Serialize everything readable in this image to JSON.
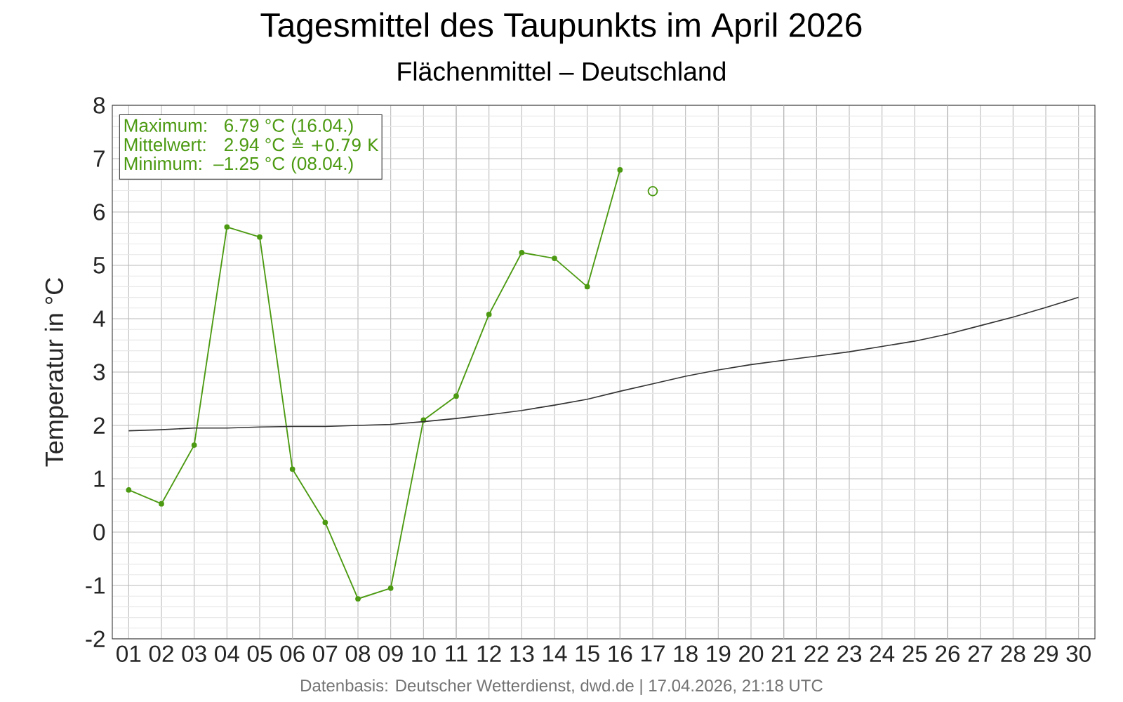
{
  "chart_data": {
    "type": "line",
    "title": "Tagesmittel des Taupunkts im April 2026",
    "subtitle": "Flächenmittel – Deutschland",
    "ylabel": "Temperatur in °C",
    "categories": [
      "01",
      "02",
      "03",
      "04",
      "05",
      "06",
      "07",
      "08",
      "09",
      "10",
      "11",
      "12",
      "13",
      "14",
      "15",
      "16",
      "17",
      "18",
      "19",
      "20",
      "21",
      "22",
      "23",
      "24",
      "25",
      "26",
      "27",
      "28",
      "29",
      "30"
    ],
    "series": [
      {
        "color": "#4c9a12",
        "marker": "circle",
        "values": [
          0.79,
          0.53,
          1.63,
          5.72,
          5.53,
          1.18,
          0.18,
          -1.25,
          -1.05,
          2.1,
          2.55,
          4.08,
          5.24,
          5.13,
          4.6,
          6.79,
          null,
          null,
          null,
          null,
          null,
          null,
          null,
          null,
          null,
          null,
          null,
          null,
          null,
          null
        ]
      },
      {
        "color": "#333333",
        "marker": "none",
        "values": [
          1.9,
          1.92,
          1.95,
          1.95,
          1.97,
          1.98,
          1.98,
          2.0,
          2.02,
          2.07,
          2.13,
          2.2,
          2.28,
          2.38,
          2.49,
          2.64,
          2.78,
          2.92,
          3.04,
          3.14,
          3.22,
          3.3,
          3.38,
          3.48,
          3.58,
          3.71,
          3.87,
          4.03,
          4.21,
          4.4
        ]
      },
      {
        "type": "scatter",
        "color": "#4c9a12",
        "marker": "circle",
        "values": [
          null,
          null,
          null,
          null,
          null,
          null,
          null,
          null,
          null,
          null,
          null,
          null,
          null,
          null,
          null,
          null,
          6.39,
          null,
          null,
          null,
          null,
          null,
          null,
          null,
          null,
          null,
          null,
          null,
          null,
          null
        ]
      }
    ],
    "ylim": [
      -2,
      8
    ],
    "yticks": [
      -2,
      -1,
      0,
      1,
      2,
      3,
      4,
      5,
      6,
      7,
      8
    ],
    "grid": true,
    "annotations": [
      "Maximum:",
      "6.79 °C",
      "(16.04.)",
      "Mittelwert:",
      "2.94 °C",
      "≙ +0.79 K",
      "Minimum:",
      "–1.25 °C",
      "(08.04.)",
      "Datenbasis: Deutscher Wetterdienst, dwd.de | 17.04.2026, 21:18 UTC"
    ]
  }
}
